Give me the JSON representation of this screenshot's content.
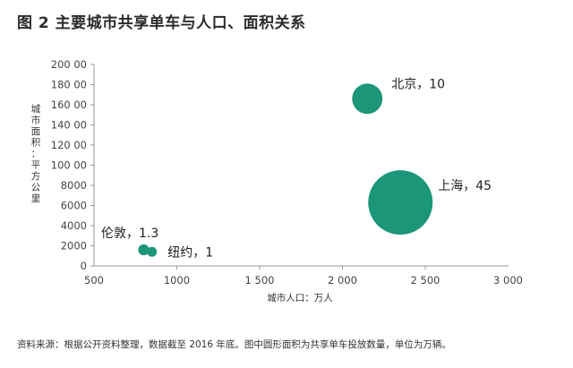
{
  "title": "图 2  主要城市共享单车与人口、面积关系",
  "footnote": "资料来源：根据公开资料整理，数据截至 2016 年底。图中圆形面积为共享单车投放数量，单位为万辆。",
  "colors": {
    "bubble": "#1c9678",
    "axis": "#999999",
    "text": "#222222"
  },
  "chart_data": {
    "type": "scatter",
    "subtype": "bubble",
    "title": "图 2  主要城市共享单车与人口、面积关系",
    "xlabel": "城市人口：万人",
    "ylabel": "城市面积：平方公里",
    "xlim": [
      500,
      3000
    ],
    "ylim": [
      0,
      20000
    ],
    "x_ticks": [
      "500",
      "1000",
      "1 500",
      "2 000",
      "2 500",
      "3 000"
    ],
    "y_ticks": [
      "0",
      "2000",
      "4000",
      "6000",
      "8000",
      "100 00",
      "120 00",
      "140 00",
      "160 00",
      "180 00",
      "200 00"
    ],
    "grid": false,
    "legend": "none",
    "size_meaning": "共享单车投放数量（万辆）",
    "points": [
      {
        "name": "北京",
        "label": "北京，10",
        "x": 2150,
        "y": 16600,
        "size": 10
      },
      {
        "name": "上海",
        "label": "上海，45",
        "x": 2350,
        "y": 6300,
        "size": 45
      },
      {
        "name": "伦敦",
        "label": "伦敦，1.3",
        "x": 800,
        "y": 1600,
        "size": 1.3
      },
      {
        "name": "纽约",
        "label": "纽约，1",
        "x": 850,
        "y": 1400,
        "size": 1
      }
    ]
  }
}
